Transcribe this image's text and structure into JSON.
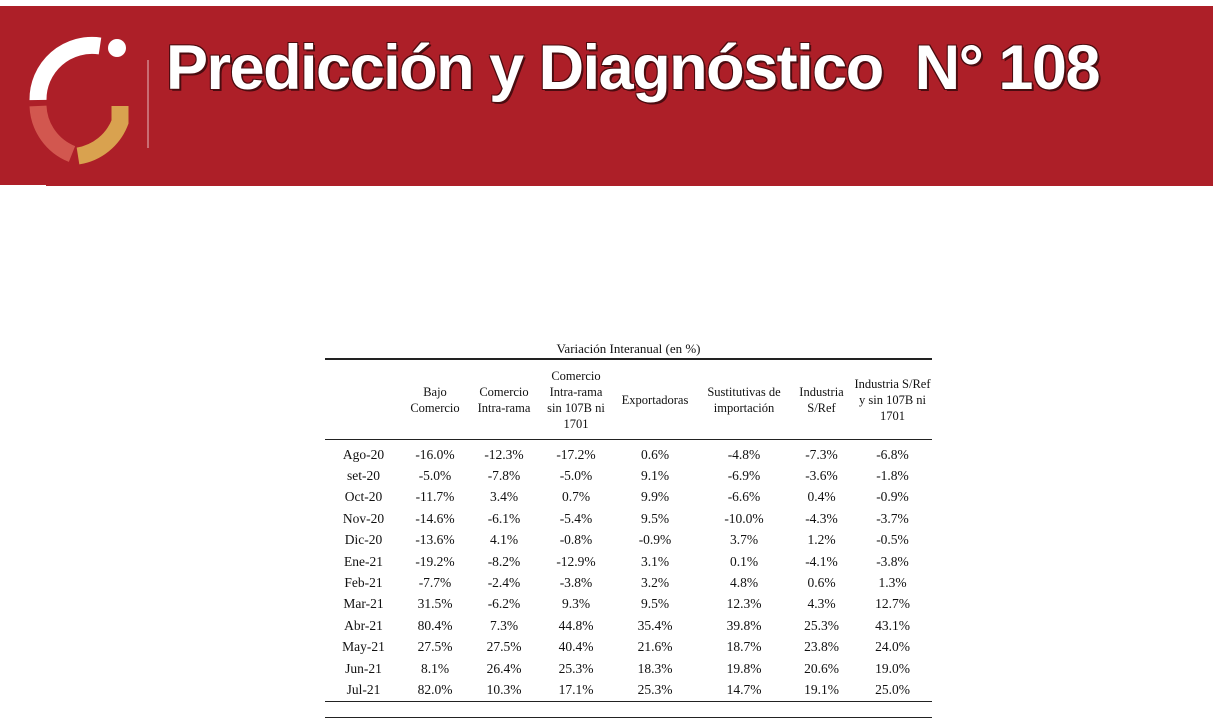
{
  "banner": {
    "title": "Predicción y Diagnóstico  N° 108",
    "background_color": "#ad1f28",
    "logo_icon": "circular-arc-logo-icon"
  },
  "table": {
    "caption": "Variación Interanual (en %)",
    "headers": [
      "",
      "Bajo Comercio",
      "Comercio Intra-rama",
      "Comercio Intra-rama sin 107B ni 1701",
      "Exportadoras",
      "Sustitutivas de importación",
      "Industria S/Ref",
      "Industria S/Ref y sin 107B ni 1701"
    ],
    "rows": [
      [
        "Ago-20",
        "-16.0%",
        "-12.3%",
        "-17.2%",
        "0.6%",
        "-4.8%",
        "-7.3%",
        "-6.8%"
      ],
      [
        "set-20",
        "-5.0%",
        "-7.8%",
        "-5.0%",
        "9.1%",
        "-6.9%",
        "-3.6%",
        "-1.8%"
      ],
      [
        "Oct-20",
        "-11.7%",
        "3.4%",
        "0.7%",
        "9.9%",
        "-6.6%",
        "0.4%",
        "-0.9%"
      ],
      [
        "Nov-20",
        "-14.6%",
        "-6.1%",
        "-5.4%",
        "9.5%",
        "-10.0%",
        "-4.3%",
        "-3.7%"
      ],
      [
        "Dic-20",
        "-13.6%",
        "4.1%",
        "-0.8%",
        "-0.9%",
        "3.7%",
        "1.2%",
        "-0.5%"
      ],
      [
        "Ene-21",
        "-19.2%",
        "-8.2%",
        "-12.9%",
        "3.1%",
        "0.1%",
        "-4.1%",
        "-3.8%"
      ],
      [
        "Feb-21",
        "-7.7%",
        "-2.4%",
        "-3.8%",
        "3.2%",
        "4.8%",
        "0.6%",
        "1.3%"
      ],
      [
        "Mar-21",
        "31.5%",
        "-6.2%",
        "9.3%",
        "9.5%",
        "12.3%",
        "4.3%",
        "12.7%"
      ],
      [
        "Abr-21",
        "80.4%",
        "7.3%",
        "44.8%",
        "35.4%",
        "39.8%",
        "25.3%",
        "43.1%"
      ],
      [
        "May-21",
        "27.5%",
        "27.5%",
        "40.4%",
        "21.6%",
        "18.7%",
        "23.8%",
        "24.0%"
      ],
      [
        "Jun-21",
        "8.1%",
        "26.4%",
        "25.3%",
        "18.3%",
        "19.8%",
        "20.6%",
        "19.0%"
      ],
      [
        "Jul-21",
        "82.0%",
        "10.3%",
        "17.1%",
        "25.3%",
        "14.7%",
        "19.1%",
        "25.0%"
      ]
    ]
  }
}
